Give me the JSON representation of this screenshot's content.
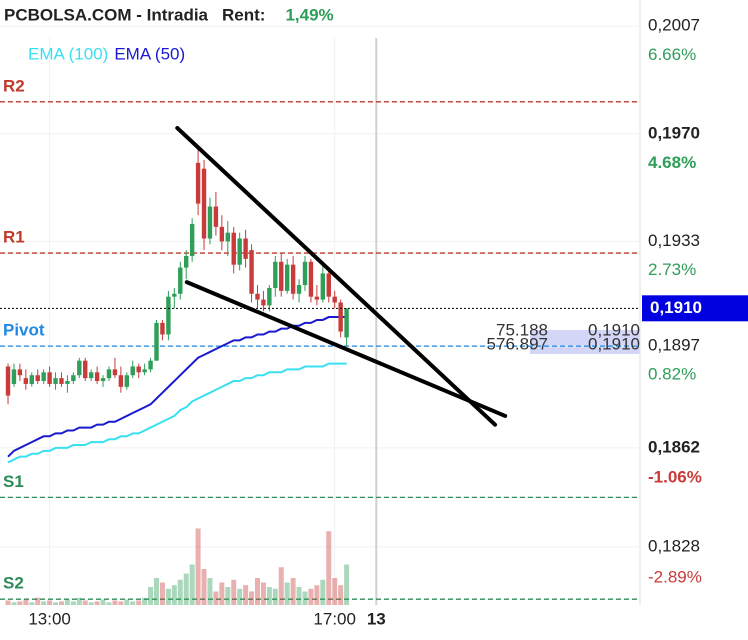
{
  "chart_data": {
    "type": "candlestick",
    "title": "PCBOLSA.COM - Intradia",
    "rent_label": "Rent:",
    "rent_value": "1,49%",
    "up_color": "#2e9e58",
    "down_color": "#c93a3a",
    "xlim": [
      -1.35,
      106.4
    ],
    "xticks": [
      {
        "value": 7,
        "label": "13:00"
      },
      {
        "value": 55,
        "label": "17:00"
      },
      {
        "value": 62,
        "label": "13",
        "bold": true
      }
    ],
    "ylim": [
      0.1808,
      0.2016
    ],
    "yticks": [
      {
        "value": 0.2007,
        "label": "0,2007"
      },
      {
        "value": 0.197,
        "label": "0,1970",
        "bold": true
      },
      {
        "value": 0.1933,
        "label": "0,1933"
      },
      {
        "value": 0.1897,
        "label": "0,1897"
      },
      {
        "value": 0.1862,
        "label": "0,1862",
        "bold": true
      },
      {
        "value": 0.1828,
        "label": "0,1828"
      }
    ],
    "y2lim": [
      -3.91,
      7.14
    ],
    "y2ticks": [
      {
        "value": 6.66,
        "label": "6.66%"
      },
      {
        "value": 4.68,
        "label": "4.68%",
        "bold": true
      },
      {
        "value": 2.73,
        "label": "2.73%"
      },
      {
        "value": 0.82,
        "label": "0.82%"
      },
      {
        "value": -1.06,
        "label": "-1.06%",
        "bold": true
      },
      {
        "value": -2.89,
        "label": "-2.89%"
      }
    ],
    "grid": true,
    "open": [
      0.189,
      0.1884,
      0.1889,
      0.1886,
      0.1884,
      0.1887,
      0.1885,
      0.1888,
      0.1884,
      0.1886,
      0.1884,
      0.1885,
      0.1887,
      0.1892,
      0.1886,
      0.1888,
      0.1885,
      0.1886,
      0.1889,
      0.1887,
      0.1883,
      0.1887,
      0.189,
      0.1888,
      0.1889,
      0.1892,
      0.1905,
      0.1901,
      0.1914,
      0.1915,
      0.1924,
      0.1928,
      0.196,
      0.1958,
      0.1934,
      0.1945,
      0.1938,
      0.1933,
      0.1936,
      0.1925,
      0.1934,
      0.193,
      0.1915,
      0.1913,
      0.1911,
      0.1917,
      0.1926,
      0.1916,
      0.1925,
      0.1915,
      0.1918,
      0.1926,
      0.1914,
      0.1913,
      0.1922,
      0.1914,
      0.1912,
      0.19
    ],
    "high": [
      0.1891,
      0.1891,
      0.1891,
      0.1889,
      0.1888,
      0.1889,
      0.1889,
      0.189,
      0.1888,
      0.1888,
      0.1887,
      0.1888,
      0.1893,
      0.1893,
      0.1889,
      0.189,
      0.1887,
      0.189,
      0.1893,
      0.189,
      0.1888,
      0.1892,
      0.1891,
      0.1891,
      0.1893,
      0.1906,
      0.1906,
      0.1916,
      0.1917,
      0.1926,
      0.193,
      0.1941,
      0.1966,
      0.1961,
      0.1948,
      0.195,
      0.1942,
      0.194,
      0.1938,
      0.1936,
      0.1937,
      0.1932,
      0.1918,
      0.1916,
      0.1918,
      0.1928,
      0.1929,
      0.1927,
      0.1928,
      0.192,
      0.1928,
      0.1927,
      0.1918,
      0.1925,
      0.1924,
      0.1916,
      0.1913,
      0.191
    ],
    "low": [
      0.1877,
      0.1883,
      0.1885,
      0.1882,
      0.1883,
      0.1884,
      0.1884,
      0.1883,
      0.1882,
      0.1883,
      0.1881,
      0.1884,
      0.1886,
      0.1885,
      0.1885,
      0.1884,
      0.1883,
      0.1885,
      0.1886,
      0.1881,
      0.1882,
      0.1886,
      0.1886,
      0.1887,
      0.1888,
      0.1892,
      0.1899,
      0.1899,
      0.191,
      0.1913,
      0.192,
      0.1926,
      0.1942,
      0.193,
      0.1932,
      0.1935,
      0.193,
      0.1928,
      0.1922,
      0.1923,
      0.1924,
      0.1912,
      0.191,
      0.1909,
      0.1909,
      0.1914,
      0.1914,
      0.1915,
      0.1913,
      0.1912,
      0.1916,
      0.1912,
      0.1911,
      0.1912,
      0.1912,
      0.191,
      0.19,
      0.1897
    ],
    "close": [
      0.188,
      0.1889,
      0.1887,
      0.1884,
      0.1887,
      0.1885,
      0.1888,
      0.1884,
      0.1886,
      0.1884,
      0.1885,
      0.1887,
      0.1892,
      0.1886,
      0.1888,
      0.1885,
      0.1886,
      0.1889,
      0.1887,
      0.1883,
      0.1887,
      0.189,
      0.1888,
      0.1889,
      0.1892,
      0.1905,
      0.1901,
      0.1914,
      0.1915,
      0.1924,
      0.1928,
      0.1939,
      0.1946,
      0.1934,
      0.1945,
      0.1938,
      0.1933,
      0.1936,
      0.1925,
      0.1934,
      0.1927,
      0.1915,
      0.1913,
      0.1911,
      0.1917,
      0.1926,
      0.1916,
      0.1925,
      0.1915,
      0.1918,
      0.1926,
      0.1914,
      0.1913,
      0.1922,
      0.1914,
      0.1912,
      0.1902,
      0.191
    ],
    "volume": [
      5,
      3,
      4,
      6,
      3,
      8,
      4,
      5,
      3,
      4,
      6,
      4,
      8,
      5,
      3,
      4,
      6,
      3,
      5,
      4,
      6,
      4,
      5,
      8,
      20,
      30,
      25,
      18,
      22,
      28,
      35,
      45,
      85,
      40,
      30,
      15,
      25,
      20,
      28,
      18,
      22,
      15,
      30,
      25,
      20,
      18,
      42,
      25,
      30,
      20,
      15,
      18,
      22,
      28,
      82,
      30,
      22,
      45
    ],
    "vlim": [
      0,
      100
    ],
    "series": [
      {
        "name": "EMA (100)",
        "color": "#38e0f0",
        "values": [
          0.1857,
          0.1858,
          0.1859,
          0.1859,
          0.186,
          0.186,
          0.1861,
          0.1861,
          0.1862,
          0.1862,
          0.1862,
          0.1863,
          0.1863,
          0.1863,
          0.1864,
          0.1864,
          0.1864,
          0.1865,
          0.1865,
          0.1866,
          0.1866,
          0.1867,
          0.1867,
          0.1868,
          0.1869,
          0.187,
          0.1871,
          0.1872,
          0.1873,
          0.1875,
          0.1876,
          0.1878,
          0.1879,
          0.188,
          0.1881,
          0.1882,
          0.1883,
          0.1884,
          0.1885,
          0.1885,
          0.1886,
          0.1886,
          0.1887,
          0.1887,
          0.1888,
          0.1888,
          0.1888,
          0.1889,
          0.1889,
          0.1889,
          0.189,
          0.189,
          0.189,
          0.189,
          0.1891,
          0.1891,
          0.1891,
          0.1891
        ]
      },
      {
        "name": "EMA (50)",
        "color": "#1a1ad0",
        "values": [
          0.1859,
          0.1861,
          0.1862,
          0.1863,
          0.1864,
          0.1865,
          0.1866,
          0.1866,
          0.1867,
          0.1867,
          0.1868,
          0.1868,
          0.1869,
          0.1869,
          0.1869,
          0.187,
          0.187,
          0.1871,
          0.1871,
          0.1872,
          0.1873,
          0.1874,
          0.1875,
          0.1876,
          0.1877,
          0.1879,
          0.1881,
          0.1883,
          0.1885,
          0.1887,
          0.1889,
          0.1891,
          0.1893,
          0.1894,
          0.1895,
          0.1896,
          0.1897,
          0.1898,
          0.1899,
          0.1899,
          0.19,
          0.19,
          0.1901,
          0.1901,
          0.1902,
          0.1902,
          0.1903,
          0.1903,
          0.1904,
          0.1904,
          0.1905,
          0.1905,
          0.1906,
          0.1906,
          0.1907,
          0.1907,
          0.1907,
          0.1907
        ]
      }
    ],
    "levels": [
      {
        "label": "R2",
        "value": 0.1981,
        "color": "#c0392b"
      },
      {
        "label": "R1",
        "value": 0.1929,
        "color": "#c0392b"
      },
      {
        "label": "Pivot",
        "value": 0.1897,
        "color": "#1e88e5"
      },
      {
        "label": "S1",
        "value": 0.1845,
        "color": "#2e8b57"
      },
      {
        "label": "S2",
        "value": 0.181,
        "color": "#2e8b57"
      }
    ],
    "current_price": {
      "value": 0.191,
      "label": "0,1910",
      "color": "#0000e0"
    },
    "overlay_labels": [
      "75.188",
      "0,1910",
      "576.897",
      "0,1910"
    ],
    "trendlines": [
      {
        "x": [
          28.5,
          82
        ],
        "y": [
          0.1972,
          0.187
        ]
      },
      {
        "x": [
          30.1,
          83.7
        ],
        "y": [
          0.1919,
          0.1873
        ]
      }
    ]
  }
}
